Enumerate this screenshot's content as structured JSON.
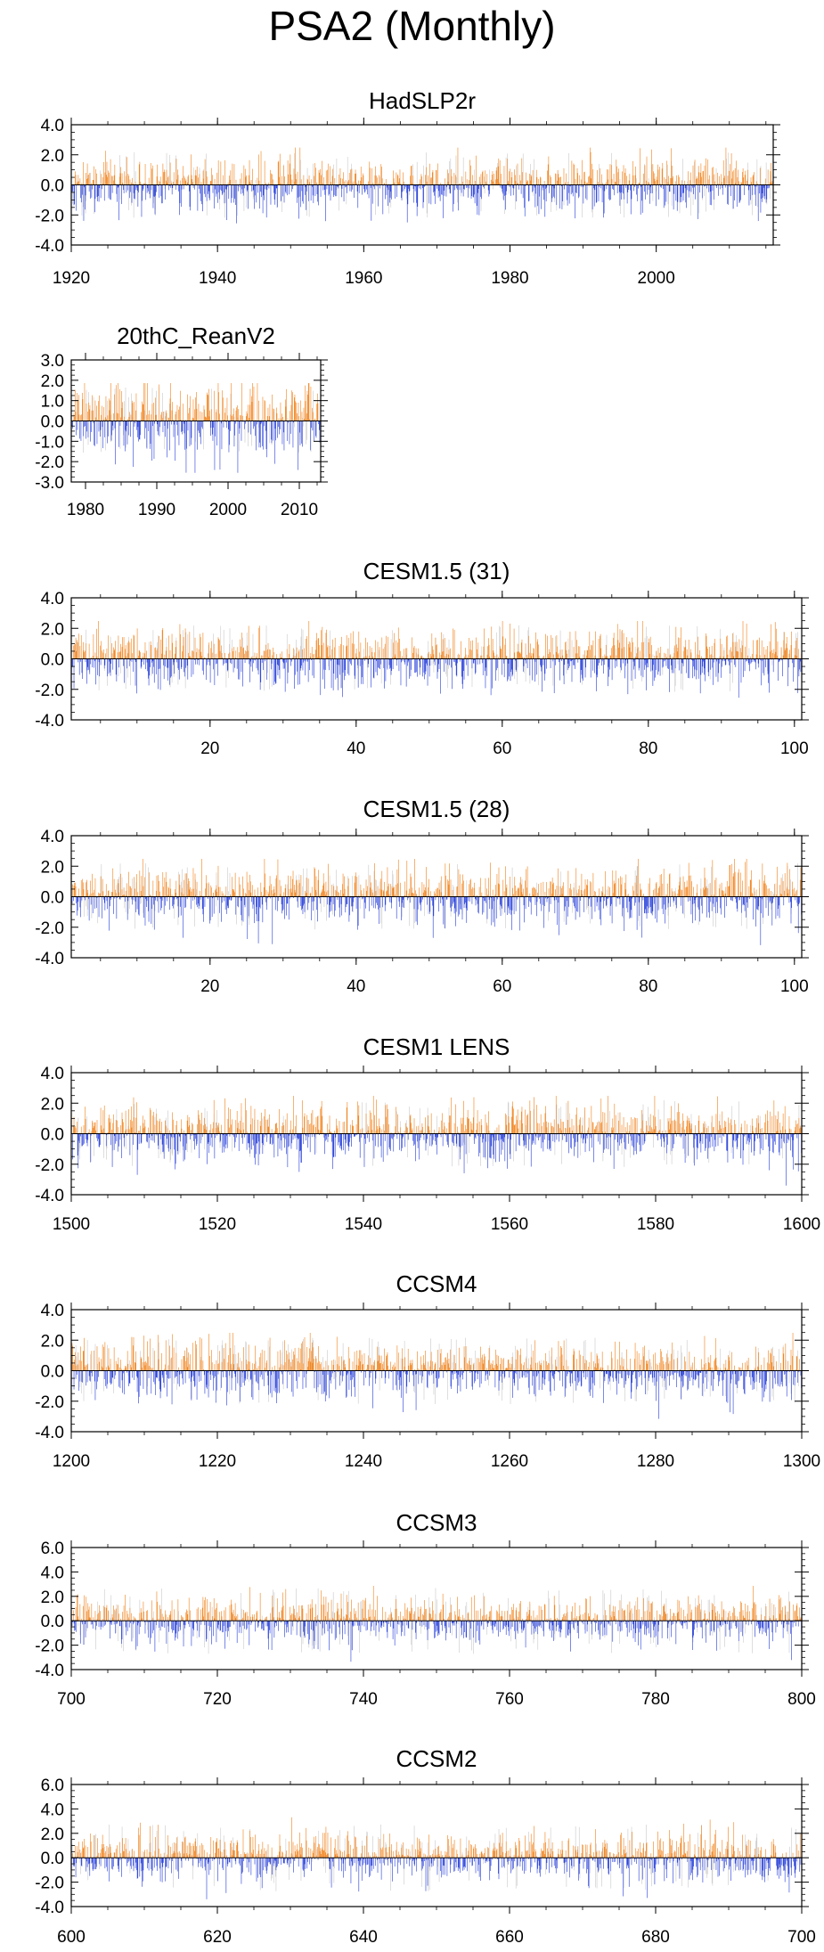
{
  "title": "PSA2 (Monthly)",
  "colors": {
    "positive": "#f07c10",
    "negative": "#1a34d8",
    "faint": "#c8c8c8",
    "axis": "#000000"
  },
  "chart_data": [
    {
      "type": "bar",
      "title": "HadSLP2r",
      "xlim": [
        1920,
        2016
      ],
      "ylim": [
        -4,
        4
      ],
      "yticks": [
        "4.0",
        "2.0",
        "0.0",
        "-2.0",
        "-4.0"
      ],
      "xticks": [
        1920,
        1940,
        1960,
        1980,
        2000
      ],
      "series_note": "monthly PSA2 index, orange positive / blue negative",
      "seed": 11
    },
    {
      "type": "bar",
      "title": "20thC_ReanV2",
      "xlim": [
        1978,
        2013
      ],
      "ylim": [
        -3,
        3
      ],
      "yticks": [
        "3.0",
        "2.0",
        "1.0",
        "0.0",
        "-1.0",
        "-2.0",
        "-3.0"
      ],
      "xticks": [
        1980,
        1990,
        2000,
        2010
      ],
      "seed": 23
    },
    {
      "type": "bar",
      "title": "CESM1.5 (31)",
      "xlim": [
        1,
        101
      ],
      "ylim": [
        -4,
        4
      ],
      "yticks": [
        "4.0",
        "2.0",
        "0.0",
        "-2.0",
        "-4.0"
      ],
      "xticks": [
        20,
        40,
        60,
        80,
        100
      ],
      "seed": 37
    },
    {
      "type": "bar",
      "title": "CESM1.5 (28)",
      "xlim": [
        1,
        101
      ],
      "ylim": [
        -4,
        4
      ],
      "yticks": [
        "4.0",
        "2.0",
        "0.0",
        "-2.0",
        "-4.0"
      ],
      "xticks": [
        20,
        40,
        60,
        80,
        100
      ],
      "seed": 41
    },
    {
      "type": "bar",
      "title": "CESM1 LENS",
      "xlim": [
        1500,
        1600
      ],
      "ylim": [
        -4,
        4
      ],
      "yticks": [
        "4.0",
        "2.0",
        "0.0",
        "-2.0",
        "-4.0"
      ],
      "xticks": [
        1500,
        1520,
        1540,
        1560,
        1580,
        1600
      ],
      "seed": 53
    },
    {
      "type": "bar",
      "title": "CCSM4",
      "xlim": [
        1200,
        1300
      ],
      "ylim": [
        -4,
        4
      ],
      "yticks": [
        "4.0",
        "2.0",
        "0.0",
        "-2.0",
        "-4.0"
      ],
      "xticks": [
        1200,
        1220,
        1240,
        1260,
        1280,
        1300
      ],
      "seed": 67
    },
    {
      "type": "bar",
      "title": "CCSM3",
      "xlim": [
        700,
        800
      ],
      "ylim": [
        -4,
        6
      ],
      "yticks": [
        "6.0",
        "4.0",
        "2.0",
        "0.0",
        "-2.0",
        "-4.0"
      ],
      "xticks": [
        700,
        720,
        740,
        760,
        780,
        800
      ],
      "seed": 71
    },
    {
      "type": "bar",
      "title": "CCSM2",
      "xlim": [
        600,
        700
      ],
      "ylim": [
        -4,
        6
      ],
      "yticks": [
        "6.0",
        "4.0",
        "2.0",
        "0.0",
        "-2.0",
        "-4.0"
      ],
      "xticks": [
        600,
        620,
        640,
        660,
        680,
        700
      ],
      "seed": 89
    }
  ]
}
